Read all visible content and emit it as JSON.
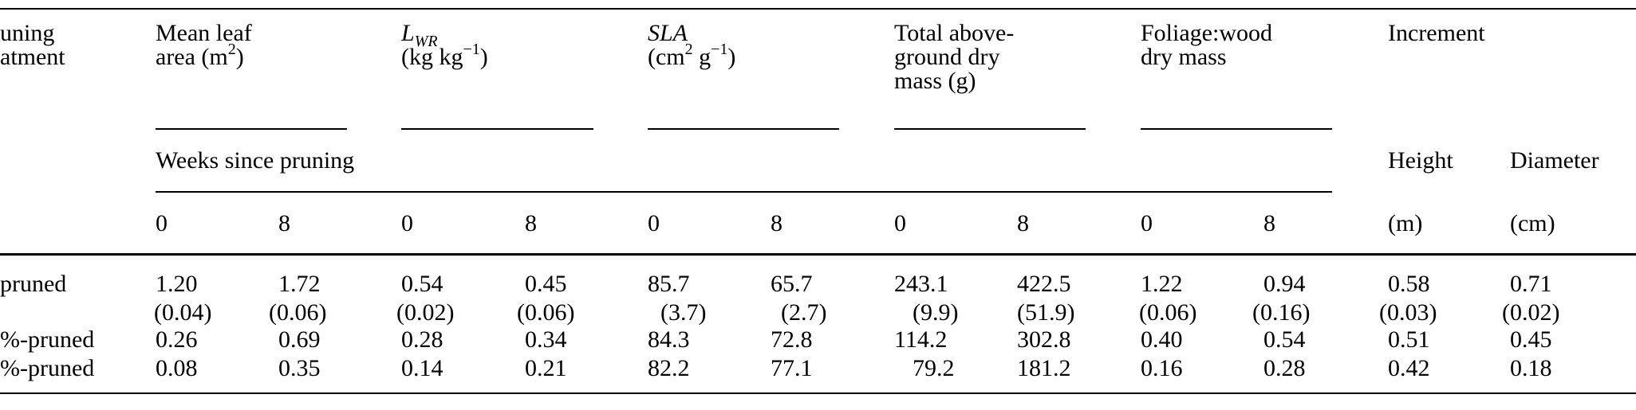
{
  "headers": {
    "treatment": [
      "uning",
      "atment"
    ],
    "leaf_area": [
      "Mean leaf",
      "area (m",
      "2",
      ")"
    ],
    "lwr": [
      "L",
      "WR",
      "(kg kg",
      "−1",
      ")"
    ],
    "sla": [
      "SLA",
      "(cm",
      "2",
      " g",
      "−1",
      ")"
    ],
    "total_mass": [
      "Total above-",
      "ground dry",
      "mass (g)"
    ],
    "foliage_wood": [
      "Foliage:wood",
      "dry mass"
    ],
    "increment": "Increment",
    "weeks_since_pruning": "Weeks since pruning",
    "height": "Height",
    "diameter": "Diameter",
    "week0": "0",
    "week8": "8",
    "height_unit": "(m)",
    "diameter_unit": "(cm)"
  },
  "rows": [
    {
      "label": "pruned",
      "values": [
        "1.20",
        "1.72",
        "0.54",
        "0.45",
        "85.7",
        "65.7",
        "243.1",
        "422.5",
        "1.22",
        "0.94",
        "0.58",
        "0.71"
      ],
      "se": [
        "(0.04)",
        "(0.06)",
        "(0.02)",
        "(0.06)",
        "(3.7)",
        "(2.7)",
        "(9.9)",
        "(51.9)",
        "(0.06)",
        "(0.16)",
        "(0.03)",
        "(0.02)"
      ]
    },
    {
      "label": "%-pruned",
      "values": [
        "0.26",
        "0.69",
        "0.28",
        "0.34",
        "84.3",
        "72.8",
        "114.2",
        "302.8",
        "0.40",
        "0.54",
        "0.51",
        "0.45"
      ]
    },
    {
      "label": "%-pruned",
      "values": [
        "0.08",
        "0.35",
        "0.14",
        "0.21",
        "82.2",
        "77.1",
        "79.2",
        "181.2",
        "0.16",
        "0.28",
        "0.42",
        "0.18"
      ]
    }
  ]
}
